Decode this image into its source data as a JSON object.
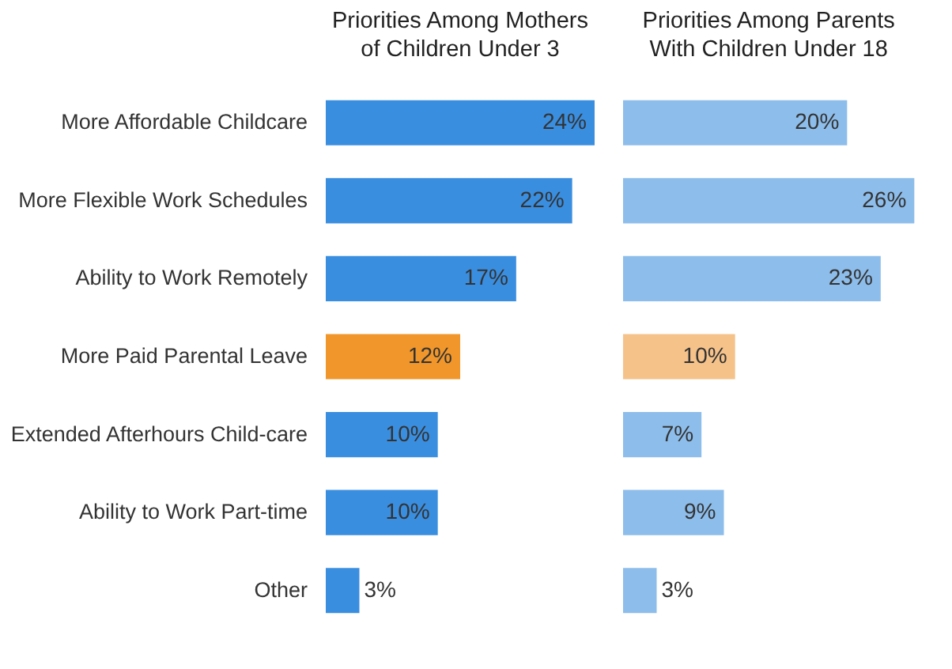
{
  "chart_data": [
    {
      "type": "bar",
      "orientation": "horizontal",
      "title": "Priorities Among Mothers of Children Under 3",
      "categories": [
        "More Affordable Childcare",
        "More Flexible Work Schedules",
        "Ability to Work Remotely",
        "More Paid Parental Leave",
        "Extended Afterhours Child-care",
        "Ability to Work Part-time",
        "Other"
      ],
      "values": [
        24,
        22,
        17,
        12,
        10,
        10,
        3
      ],
      "value_labels": [
        "24%",
        "22%",
        "17%",
        "12%",
        "10%",
        "10%",
        "3%"
      ],
      "colors": [
        "#3a8ee0",
        "#3a8ee0",
        "#3a8ee0",
        "#f0962a",
        "#3a8ee0",
        "#3a8ee0",
        "#3a8ee0"
      ],
      "tick_labels": "y"
    },
    {
      "type": "bar",
      "orientation": "horizontal",
      "title": "Priorities Among Parents With Children Under 18",
      "categories": [
        null,
        null,
        null,
        null,
        null,
        null,
        null
      ],
      "values": [
        20,
        26,
        23,
        10,
        7,
        9,
        3
      ],
      "value_labels": [
        "20%",
        "26%",
        "23%",
        "10%",
        "7%",
        "9%",
        "3%"
      ],
      "colors": [
        "#8dbdea",
        "#8dbdea",
        "#8dbdea",
        "#f5c28a",
        "#8dbdea",
        "#8dbdea",
        "#8dbdea"
      ],
      "tick_labels": false
    }
  ]
}
